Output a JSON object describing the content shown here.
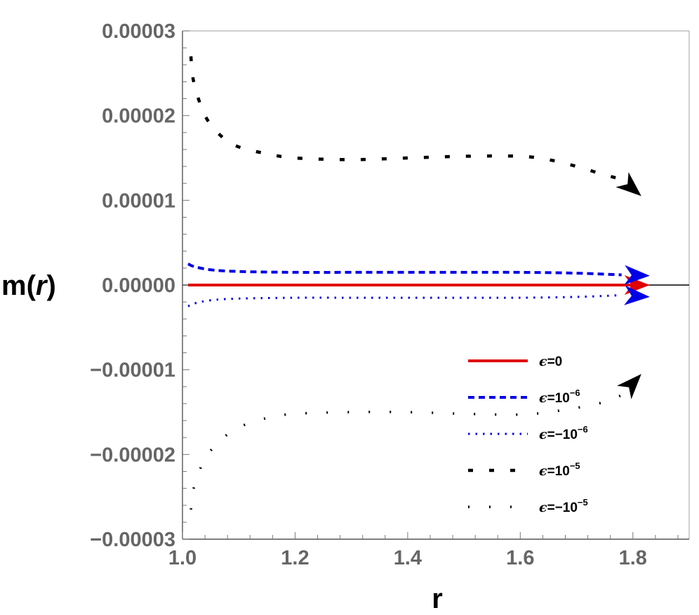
{
  "chart_data": {
    "type": "line",
    "xlabel": "r",
    "ylabel": {
      "prefix": "m(",
      "var": "r",
      "suffix": ")"
    },
    "xlim": [
      1.0,
      1.9
    ],
    "ylim": [
      -3e-05,
      3e-05
    ],
    "xticks": [
      {
        "value": 1.0,
        "label": "1.0"
      },
      {
        "value": 1.2,
        "label": "1.2"
      },
      {
        "value": 1.4,
        "label": "1.4"
      },
      {
        "value": 1.6,
        "label": "1.6"
      },
      {
        "value": 1.8,
        "label": "1.8"
      }
    ],
    "yticks": [
      {
        "value": 3e-05,
        "label": "0.00003"
      },
      {
        "value": 2e-05,
        "label": "0.00002"
      },
      {
        "value": 1e-05,
        "label": "0.00001"
      },
      {
        "value": 0,
        "label": "0.00000"
      },
      {
        "value": -1e-05,
        "label": "−0.00001"
      },
      {
        "value": -2e-05,
        "label": "−0.00002"
      },
      {
        "value": -3e-05,
        "label": "−0.00003"
      }
    ],
    "grid": false,
    "legend_position": "lower-right",
    "series": [
      {
        "legend": {
          "eps": "ϵ",
          "text": "=0",
          "sup": ""
        },
        "color": "#e00000",
        "style": "solid",
        "x": [
          1.01,
          1.2,
          1.4,
          1.6,
          1.8
        ],
        "y": [
          0,
          0,
          0,
          0,
          0
        ],
        "arrow": {
          "x": 1.83,
          "y": 0
        }
      },
      {
        "legend": {
          "eps": "ϵ",
          "text": "=10",
          "sup": "−6"
        },
        "color": "#0000e6",
        "style": "dashed",
        "x": [
          1.01,
          1.02,
          1.05,
          1.1,
          1.2,
          1.3,
          1.4,
          1.5,
          1.6,
          1.7,
          1.78
        ],
        "y": [
          2.5e-06,
          2.2e-06,
          1.8e-06,
          1.6e-06,
          1.5e-06,
          1.5e-06,
          1.5e-06,
          1.5e-06,
          1.5e-06,
          1.4e-06,
          1.2e-06
        ],
        "arrow": {
          "x": 1.83,
          "y": 1.1e-06
        }
      },
      {
        "legend": {
          "eps": "ϵ",
          "text": "=−10",
          "sup": "−6"
        },
        "color": "#0000e6",
        "style": "dotted",
        "x": [
          1.01,
          1.02,
          1.05,
          1.1,
          1.2,
          1.3,
          1.4,
          1.5,
          1.6,
          1.7,
          1.78
        ],
        "y": [
          -2.5e-06,
          -2.2e-06,
          -1.8e-06,
          -1.6e-06,
          -1.5e-06,
          -1.5e-06,
          -1.5e-06,
          -1.5e-06,
          -1.5e-06,
          -1.4e-06,
          -1.2e-06
        ],
        "arrow": {
          "x": 1.83,
          "y": -1.4e-06
        }
      },
      {
        "legend": {
          "eps": "ϵ",
          "text": "=10",
          "sup": "−5"
        },
        "color": "#000000",
        "style": "dashed-sparse",
        "x": [
          1.015,
          1.02,
          1.04,
          1.07,
          1.1,
          1.15,
          1.2,
          1.3,
          1.4,
          1.5,
          1.6,
          1.65,
          1.7,
          1.75,
          1.78
        ],
        "y": [
          2.7e-05,
          2.4e-05,
          2e-05,
          1.75e-05,
          1.63e-05,
          1.55e-05,
          1.5e-05,
          1.48e-05,
          1.5e-05,
          1.52e-05,
          1.52e-05,
          1.48e-05,
          1.4e-05,
          1.3e-05,
          1.25e-05
        ],
        "arrow": {
          "x": 1.815,
          "y": 1.05e-05
        }
      },
      {
        "legend": {
          "eps": "ϵ",
          "text": "=−10",
          "sup": "−5"
        },
        "color": "#000000",
        "style": "dotted-sparse",
        "x": [
          1.015,
          1.02,
          1.04,
          1.07,
          1.1,
          1.15,
          1.2,
          1.3,
          1.4,
          1.5,
          1.6,
          1.65,
          1.7,
          1.75,
          1.78
        ],
        "y": [
          -2.65e-05,
          -2.4e-05,
          -2.05e-05,
          -1.82e-05,
          -1.68e-05,
          -1.57e-05,
          -1.52e-05,
          -1.5e-05,
          -1.5e-05,
          -1.52e-05,
          -1.53e-05,
          -1.5e-05,
          -1.45e-05,
          -1.38e-05,
          -1.3e-05
        ],
        "arrow": {
          "x": 1.815,
          "y": -1.05e-05
        }
      }
    ]
  }
}
